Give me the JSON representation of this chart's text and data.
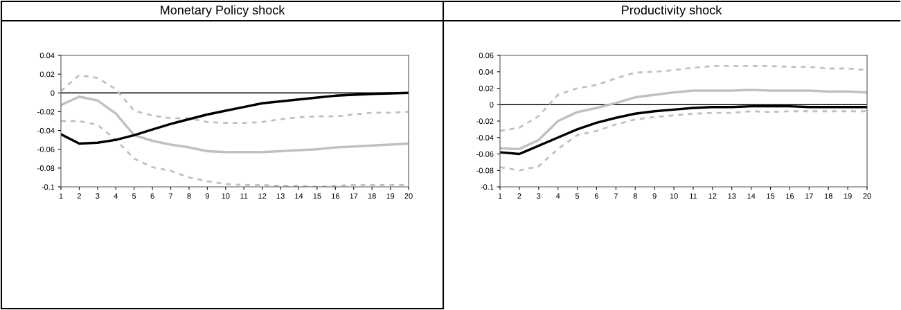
{
  "chart_data": [
    {
      "type": "line",
      "title": "Monetary Policy shock",
      "categories": [
        "1",
        "2",
        "3",
        "4",
        "5",
        "6",
        "7",
        "8",
        "9",
        "10",
        "11",
        "12",
        "13",
        "14",
        "15",
        "16",
        "17",
        "18",
        "19",
        "20"
      ],
      "ylim": [
        -0.1,
        0.04
      ],
      "yticks": [
        {
          "value": -0.1,
          "label": "-0.1"
        },
        {
          "value": -0.08,
          "label": "-0.08"
        },
        {
          "value": -0.06,
          "label": "-0.06"
        },
        {
          "value": -0.04,
          "label": "-0.04"
        },
        {
          "value": -0.02,
          "label": "-0.02"
        },
        0,
        0.02,
        0.04
      ],
      "grid": false,
      "legend": false,
      "ref_lines": [
        {
          "axis": "y",
          "value": 0,
          "color": "#000000"
        }
      ],
      "series": [
        {
          "color": "#c0c0c0",
          "line_style": "dashed",
          "values": [
            0.002,
            0.019,
            0.016,
            0.004,
            -0.019,
            -0.024,
            -0.027,
            -0.027,
            -0.031,
            -0.032,
            -0.032,
            -0.031,
            -0.028,
            -0.026,
            -0.025,
            -0.025,
            -0.023,
            -0.021,
            -0.021,
            -0.02
          ]
        },
        {
          "color": "#c0c0c0",
          "line_style": "dashed",
          "values": [
            -0.03,
            -0.03,
            -0.034,
            -0.05,
            -0.07,
            -0.079,
            -0.083,
            -0.09,
            -0.094,
            -0.097,
            -0.098,
            -0.098,
            -0.099,
            -0.099,
            -0.1,
            -0.099,
            -0.098,
            -0.098,
            -0.098,
            -0.098
          ]
        },
        {
          "color": "#c0c0c0",
          "line_style": "solid",
          "values": [
            -0.013,
            -0.004,
            -0.008,
            -0.022,
            -0.045,
            -0.051,
            -0.055,
            -0.058,
            -0.062,
            -0.063,
            -0.063,
            -0.063,
            -0.062,
            -0.061,
            -0.06,
            -0.058,
            -0.057,
            -0.056,
            -0.055,
            -0.054
          ]
        },
        {
          "color": "#000000",
          "line_style": "solid",
          "values": [
            -0.044,
            -0.054,
            -0.053,
            -0.05,
            -0.045,
            -0.039,
            -0.033,
            -0.028,
            -0.023,
            -0.019,
            -0.015,
            -0.011,
            -0.009,
            -0.007,
            -0.005,
            -0.003,
            -0.002,
            -0.001,
            -0.0005,
            0
          ]
        }
      ]
    },
    {
      "type": "line",
      "title": "Productivity shock",
      "categories": [
        "1",
        "2",
        "3",
        "4",
        "5",
        "6",
        "7",
        "8",
        "9",
        "10",
        "11",
        "12",
        "13",
        "14",
        "15",
        "16",
        "17",
        "18",
        "19",
        "20"
      ],
      "ylim": [
        -0.1,
        0.06
      ],
      "yticks": [
        {
          "value": -0.1,
          "label": "-0.1"
        },
        {
          "value": -0.08,
          "label": "-0.08"
        },
        {
          "value": -0.06,
          "label": "-0.06"
        },
        {
          "value": -0.04,
          "label": "-0.04"
        },
        {
          "value": -0.02,
          "label": "-0.02"
        },
        0,
        0.02,
        0.04,
        0.06
      ],
      "grid": false,
      "legend": false,
      "ref_lines": [
        {
          "axis": "y",
          "value": 0,
          "color": "#000000"
        }
      ],
      "series": [
        {
          "color": "#c0c0c0",
          "line_style": "dashed",
          "values": [
            -0.032,
            -0.028,
            -0.014,
            0.012,
            0.02,
            0.024,
            0.032,
            0.039,
            0.04,
            0.042,
            0.045,
            0.047,
            0.047,
            0.047,
            0.047,
            0.046,
            0.046,
            0.044,
            0.044,
            0.042
          ]
        },
        {
          "color": "#c0c0c0",
          "line_style": "dashed",
          "values": [
            -0.076,
            -0.08,
            -0.075,
            -0.054,
            -0.037,
            -0.032,
            -0.024,
            -0.018,
            -0.015,
            -0.013,
            -0.011,
            -0.01,
            -0.01,
            -0.008,
            -0.009,
            -0.008,
            -0.008,
            -0.008,
            -0.008,
            -0.008
          ]
        },
        {
          "color": "#c0c0c0",
          "line_style": "solid",
          "values": [
            -0.053,
            -0.054,
            -0.043,
            -0.02,
            -0.009,
            -0.004,
            0.002,
            0.009,
            0.012,
            0.015,
            0.017,
            0.017,
            0.017,
            0.018,
            0.017,
            0.017,
            0.017,
            0.016,
            0.016,
            0.015
          ]
        },
        {
          "color": "#000000",
          "line_style": "solid",
          "values": [
            -0.058,
            -0.06,
            -0.05,
            -0.04,
            -0.03,
            -0.022,
            -0.016,
            -0.011,
            -0.008,
            -0.006,
            -0.004,
            -0.003,
            -0.003,
            -0.002,
            -0.002,
            -0.002,
            -0.003,
            -0.003,
            -0.003,
            -0.003
          ]
        }
      ]
    }
  ]
}
